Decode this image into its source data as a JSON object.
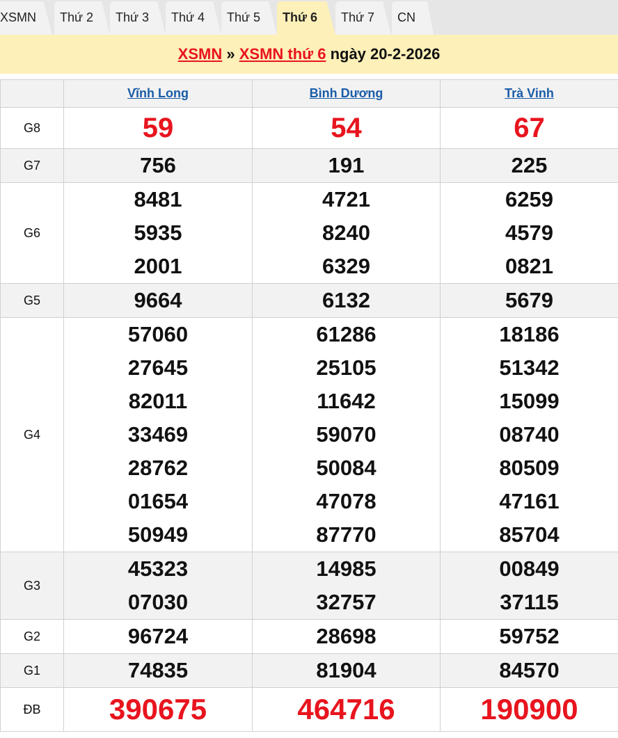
{
  "tabs": [
    {
      "label": "XSMN"
    },
    {
      "label": "Thứ 2"
    },
    {
      "label": "Thứ 3"
    },
    {
      "label": "Thứ 4"
    },
    {
      "label": "Thứ 5"
    },
    {
      "label": "Thứ 6",
      "active": true
    },
    {
      "label": "Thứ 7"
    },
    {
      "label": "CN"
    }
  ],
  "banner": {
    "link1": "XSMN",
    "sep": "»",
    "link2": "XSMN thứ 6",
    "date_text": "ngày 20-2-2026"
  },
  "colors": {
    "accent_red": "#e8141e",
    "link_blue": "#1a5ca8",
    "banner_bg": "#fdf0b8"
  },
  "provinces": [
    "Vĩnh Long",
    "Bình Dương",
    "Trà Vinh"
  ],
  "prizes": [
    {
      "label": "G8",
      "style": "big",
      "values": [
        [
          "59"
        ],
        [
          "54"
        ],
        [
          "67"
        ]
      ]
    },
    {
      "label": "G7",
      "values": [
        [
          "756"
        ],
        [
          "191"
        ],
        [
          "225"
        ]
      ]
    },
    {
      "label": "G6",
      "values": [
        [
          "8481",
          "5935",
          "2001"
        ],
        [
          "4721",
          "8240",
          "6329"
        ],
        [
          "6259",
          "4579",
          "0821"
        ]
      ]
    },
    {
      "label": "G5",
      "values": [
        [
          "9664"
        ],
        [
          "6132"
        ],
        [
          "5679"
        ]
      ]
    },
    {
      "label": "G4",
      "values": [
        [
          "57060",
          "27645",
          "82011",
          "33469",
          "28762",
          "01654",
          "50949"
        ],
        [
          "61286",
          "25105",
          "11642",
          "59070",
          "50084",
          "47078",
          "87770"
        ],
        [
          "18186",
          "51342",
          "15099",
          "08740",
          "80509",
          "47161",
          "85704"
        ]
      ]
    },
    {
      "label": "G3",
      "values": [
        [
          "45323",
          "07030"
        ],
        [
          "14985",
          "32757"
        ],
        [
          "00849",
          "37115"
        ]
      ]
    },
    {
      "label": "G2",
      "values": [
        [
          "96724"
        ],
        [
          "28698"
        ],
        [
          "59752"
        ]
      ]
    },
    {
      "label": "G1",
      "values": [
        [
          "74835"
        ],
        [
          "81904"
        ],
        [
          "84570"
        ]
      ]
    },
    {
      "label": "ĐB",
      "style": "db",
      "values": [
        [
          "390675"
        ],
        [
          "464716"
        ],
        [
          "190900"
        ]
      ]
    }
  ]
}
